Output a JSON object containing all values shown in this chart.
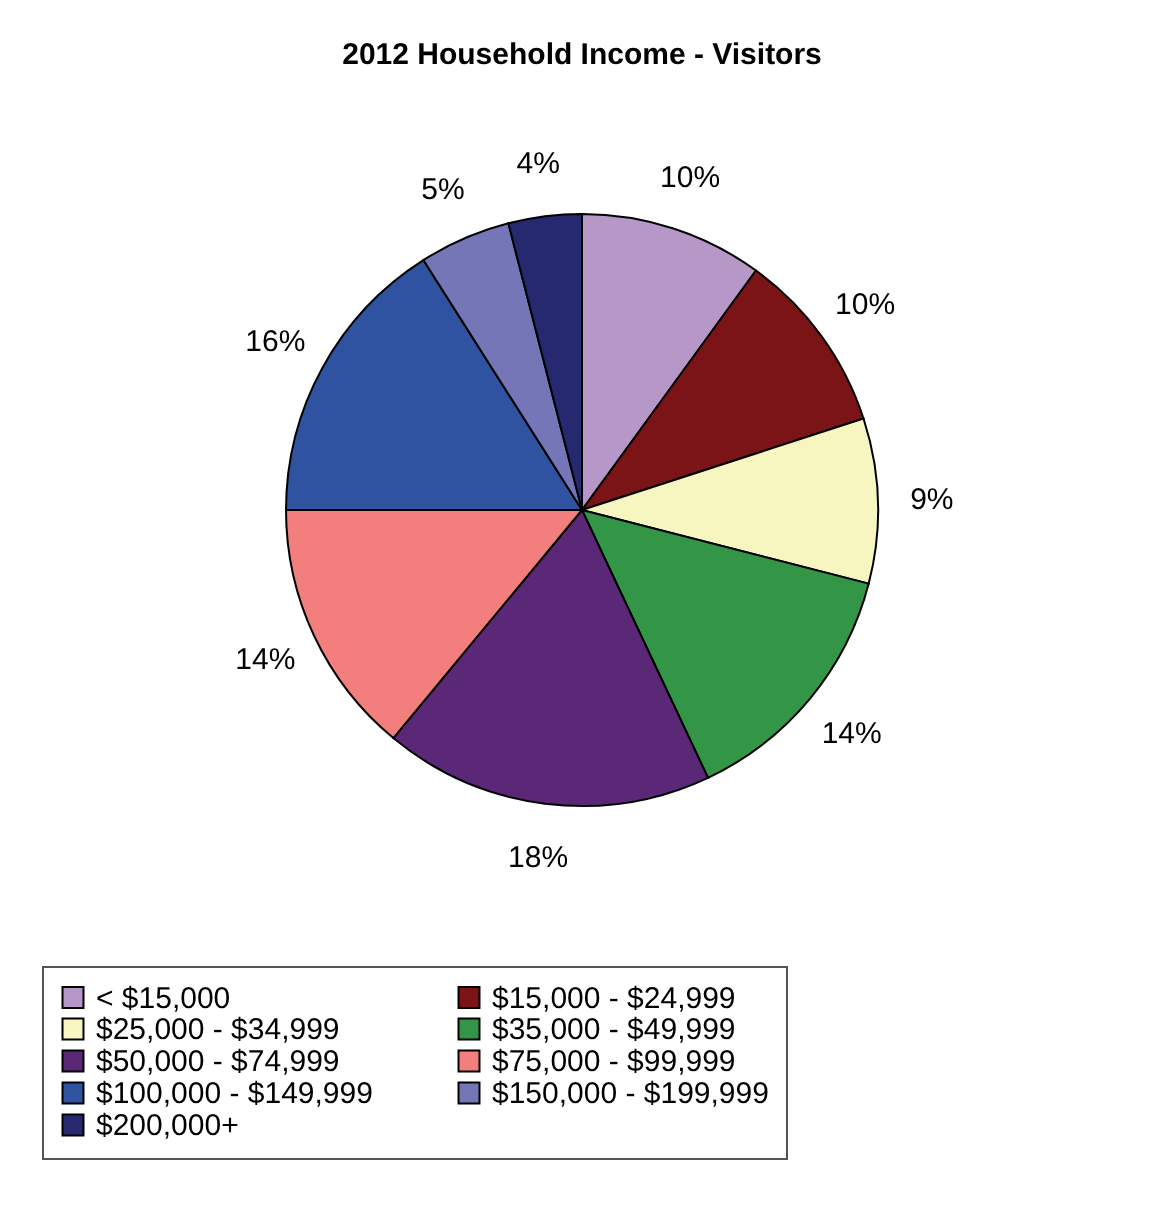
{
  "chart_data": {
    "type": "pie",
    "title": "2012 Household Income - Visitors",
    "categories": [
      "< $15,000",
      "$15,000 - $24,999",
      "$25,000 - $34,999",
      "$35,000 - $49,999",
      "$50,000 - $74,999",
      "$75,000 - $99,999",
      "$100,000 - $149,999",
      "$150,000 - $199,999",
      "$200,000+"
    ],
    "values": [
      10,
      10,
      9,
      14,
      18,
      14,
      16,
      5,
      4
    ],
    "value_labels": [
      "10%",
      "10%",
      "9%",
      "14%",
      "18%",
      "14%",
      "16%",
      "5%",
      "4%"
    ],
    "colors": [
      "#b797c7",
      "#7a1416",
      "#f7f5c0",
      "#339646",
      "#5b2777",
      "#f27f7d",
      "#2f52a1",
      "#7476b8",
      "#262870"
    ],
    "legend": "bottom"
  }
}
